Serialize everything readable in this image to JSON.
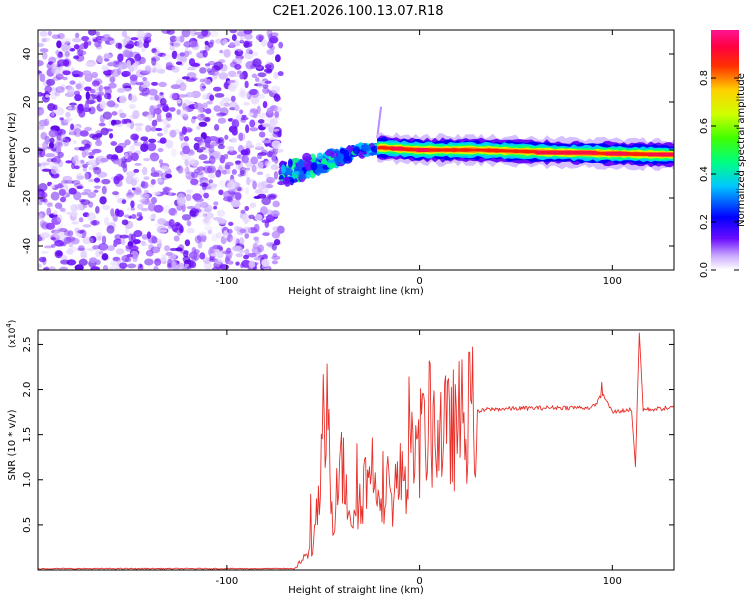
{
  "title": "C2E1.2026.100.13.07.R18",
  "chart_data": [
    {
      "type": "heatmap",
      "name": "spectrogram",
      "xlabel": "Height of straight line (km)",
      "ylabel": "Frequency (Hz)",
      "xlim": [
        -198,
        132
      ],
      "ylim": [
        -50,
        50
      ],
      "x_ticks": [
        -100,
        0,
        100
      ],
      "y_ticks": [
        -40,
        -20,
        0,
        20,
        40
      ],
      "description_points": {
        "noise_region_x": [
          -198,
          -72
        ],
        "transition_x": [
          -72,
          -20
        ],
        "signal_line": {
          "x": [
            -72,
            -50,
            -30,
            -20,
            0,
            30,
            70,
            100,
            132
          ],
          "freq": [
            -10,
            -5,
            0,
            1,
            0,
            0,
            -1,
            -1.5,
            -2
          ]
        },
        "spike": {
          "x": -22,
          "freq": [
            5,
            18
          ]
        }
      },
      "colorbar": {
        "label": "Normalized spectral amplitude",
        "range": [
          0,
          1
        ],
        "ticks": [
          0.0,
          0.2,
          0.4,
          0.6,
          0.8
        ],
        "tick_labels": [
          "0.0",
          "0.2",
          "0.4",
          "0.6",
          "0.8"
        ],
        "colors": [
          "#ffffff",
          "#6a0dff",
          "#0000ff",
          "#00ffff",
          "#00ff00",
          "#ffff00",
          "#ff8c00",
          "#ff0000",
          "#ff1493"
        ]
      }
    },
    {
      "type": "line",
      "name": "snr",
      "xlabel": "Height of straight line (km)",
      "ylabel": "SNR (10 * v/v)",
      "scale_label": "(x10",
      "scale_exp": "4",
      "scale_close": ")",
      "xlim": [
        -198,
        132
      ],
      "ylim": [
        0,
        26600
      ],
      "x_ticks": [
        -100,
        0,
        100
      ],
      "y_ticks": [
        5000,
        10000,
        15000,
        20000,
        25000
      ],
      "y_tick_labels": [
        "0.5",
        "1.0",
        "1.5",
        "2.0",
        "2.5"
      ],
      "color": "#e8302a",
      "key_points": {
        "x": [
          -198,
          -65,
          -55,
          -48,
          -45,
          -42,
          -35,
          -25,
          -15,
          -5,
          5,
          15,
          25,
          35,
          50,
          70,
          90,
          95,
          100,
          110,
          112,
          114,
          116,
          120,
          132
        ],
        "y": [
          150,
          150,
          2500,
          16800,
          5000,
          13000,
          6000,
          11500,
          8000,
          12000,
          16000,
          15000,
          17200,
          17800,
          17900,
          18000,
          18000,
          19500,
          17500,
          17800,
          11500,
          26300,
          17800,
          17800,
          18000
        ]
      }
    }
  ]
}
